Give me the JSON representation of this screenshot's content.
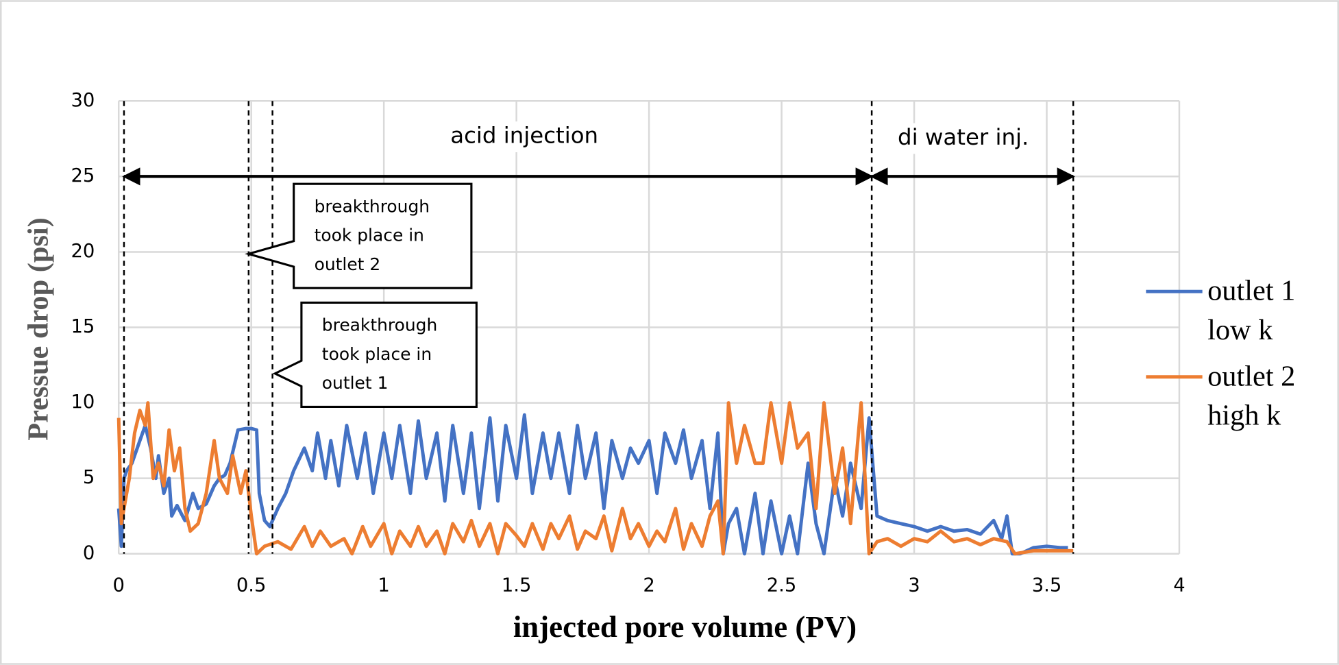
{
  "chart_data": {
    "type": "line",
    "xlabel": "injected pore volume (PV)",
    "ylabel": "Pressue drop (psi)",
    "xlim": [
      0,
      4
    ],
    "xticks": [
      0,
      0.5,
      1,
      1.5,
      2,
      2.5,
      3,
      3.5,
      4
    ],
    "ylim": [
      0,
      30
    ],
    "yticks": [
      0,
      5,
      10,
      15,
      20,
      25,
      30
    ],
    "grid": true,
    "legend": "right",
    "series": [
      {
        "name": "outlet 1 low k",
        "color": "#4472c4",
        "x": [
          0,
          0.01,
          0.02,
          0.03,
          0.05,
          0.08,
          0.1,
          0.12,
          0.14,
          0.15,
          0.17,
          0.19,
          0.2,
          0.22,
          0.25,
          0.28,
          0.3,
          0.33,
          0.36,
          0.38,
          0.4,
          0.42,
          0.45,
          0.48,
          0.5,
          0.52,
          0.53,
          0.55,
          0.57,
          0.6,
          0.63,
          0.66,
          0.7,
          0.73,
          0.75,
          0.78,
          0.8,
          0.83,
          0.86,
          0.9,
          0.93,
          0.96,
          1.0,
          1.03,
          1.06,
          1.1,
          1.13,
          1.16,
          1.2,
          1.23,
          1.26,
          1.3,
          1.33,
          1.36,
          1.4,
          1.43,
          1.46,
          1.5,
          1.53,
          1.56,
          1.6,
          1.63,
          1.66,
          1.7,
          1.73,
          1.76,
          1.8,
          1.83,
          1.86,
          1.9,
          1.93,
          1.96,
          2.0,
          2.03,
          2.06,
          2.1,
          2.13,
          2.16,
          2.2,
          2.23,
          2.26,
          2.28,
          2.3,
          2.33,
          2.36,
          2.4,
          2.43,
          2.46,
          2.5,
          2.53,
          2.56,
          2.6,
          2.63,
          2.66,
          2.7,
          2.73,
          2.76,
          2.8,
          2.83,
          2.86,
          2.9,
          2.95,
          3.0,
          3.05,
          3.1,
          3.15,
          3.2,
          3.25,
          3.3,
          3.33,
          3.35,
          3.37,
          3.4,
          3.45,
          3.5,
          3.55,
          3.58
        ],
        "values": [
          3,
          0.5,
          5,
          5.5,
          6,
          7.5,
          8.5,
          7,
          5,
          6.5,
          4,
          5,
          2.5,
          3.2,
          2.2,
          4,
          3,
          3.3,
          4.5,
          5,
          5.2,
          6,
          8.2,
          8.3,
          8.3,
          8.2,
          4,
          2.2,
          1.8,
          3,
          4,
          5.5,
          7,
          5.5,
          8,
          5,
          7.5,
          4.5,
          8.5,
          5,
          8,
          4,
          8,
          5,
          8.5,
          4,
          8.8,
          5,
          8,
          3.5,
          8.5,
          4,
          8,
          3,
          9,
          3.5,
          8.5,
          5,
          9.2,
          4,
          8,
          5,
          8,
          4,
          8.5,
          5,
          8,
          3,
          7.5,
          5,
          7,
          6,
          7.5,
          4,
          8,
          6,
          8.2,
          5,
          7.5,
          3,
          8,
          0,
          2,
          3,
          0,
          4,
          0,
          3.5,
          0,
          2.5,
          0,
          6,
          2,
          0,
          5,
          2.5,
          6,
          3,
          9,
          2.5,
          2.2,
          2,
          1.8,
          1.5,
          1.8,
          1.5,
          1.6,
          1.3,
          2.2,
          1,
          2.5,
          0,
          0,
          0.4,
          0.5,
          0.4,
          0.4
        ]
      },
      {
        "name": "outlet 2 high k",
        "color": "#ed7d31",
        "x": [
          0,
          0.01,
          0.02,
          0.04,
          0.06,
          0.08,
          0.1,
          0.11,
          0.13,
          0.15,
          0.17,
          0.19,
          0.21,
          0.23,
          0.25,
          0.27,
          0.3,
          0.33,
          0.36,
          0.38,
          0.41,
          0.43,
          0.46,
          0.48,
          0.5,
          0.52,
          0.55,
          0.6,
          0.65,
          0.7,
          0.73,
          0.76,
          0.8,
          0.85,
          0.88,
          0.92,
          0.95,
          1.0,
          1.03,
          1.06,
          1.1,
          1.13,
          1.16,
          1.2,
          1.23,
          1.26,
          1.3,
          1.33,
          1.36,
          1.4,
          1.43,
          1.46,
          1.5,
          1.53,
          1.56,
          1.6,
          1.63,
          1.66,
          1.7,
          1.73,
          1.76,
          1.8,
          1.83,
          1.86,
          1.9,
          1.93,
          1.96,
          2.0,
          2.03,
          2.06,
          2.1,
          2.13,
          2.16,
          2.2,
          2.23,
          2.26,
          2.28,
          2.3,
          2.33,
          2.36,
          2.4,
          2.43,
          2.46,
          2.5,
          2.53,
          2.56,
          2.6,
          2.63,
          2.66,
          2.7,
          2.73,
          2.76,
          2.8,
          2.83,
          2.86,
          2.9,
          2.95,
          3.0,
          3.05,
          3.1,
          3.15,
          3.2,
          3.25,
          3.3,
          3.35,
          3.38,
          3.45,
          3.5,
          3.6
        ],
        "values": [
          9,
          2,
          3,
          5,
          8,
          9.5,
          8.5,
          10,
          5,
          6,
          4.5,
          8.2,
          5.5,
          7,
          3,
          1.5,
          2,
          4,
          7.5,
          5,
          4,
          6.5,
          4,
          5.5,
          2.5,
          0,
          0.5,
          0.8,
          0.3,
          1.8,
          0.5,
          1.5,
          0.5,
          1,
          0,
          1.8,
          0.5,
          2,
          0,
          1.5,
          0.5,
          1.8,
          0.5,
          1.5,
          0,
          2,
          0.8,
          2.2,
          0.5,
          2,
          0,
          2,
          1.2,
          0.5,
          2,
          0.3,
          2,
          1,
          2.5,
          0.3,
          1.5,
          1,
          2.5,
          0.2,
          3,
          1,
          2,
          0.5,
          1.5,
          0.8,
          3,
          0.3,
          2,
          0.5,
          2.5,
          3.5,
          0,
          10,
          6,
          8.5,
          6,
          6,
          10,
          6,
          10,
          7,
          8,
          3,
          10,
          4,
          7,
          2,
          10,
          0,
          0.8,
          1,
          0.5,
          1,
          0.8,
          1.5,
          0.8,
          1,
          0.6,
          1,
          0.8,
          0,
          0.2,
          0.2,
          0.2
        ]
      }
    ],
    "vlines": [
      0.02,
      0.49,
      0.58,
      2.84,
      3.6
    ],
    "arrows": [
      {
        "from": 0.02,
        "to": 2.84,
        "y": 25
      },
      {
        "from": 2.84,
        "to": 3.6,
        "y": 25
      }
    ],
    "annotations": [
      "acid injection",
      "di water inj.",
      "breakthrough took place in outlet 2",
      "breakthrough took place in outlet 1"
    ]
  }
}
